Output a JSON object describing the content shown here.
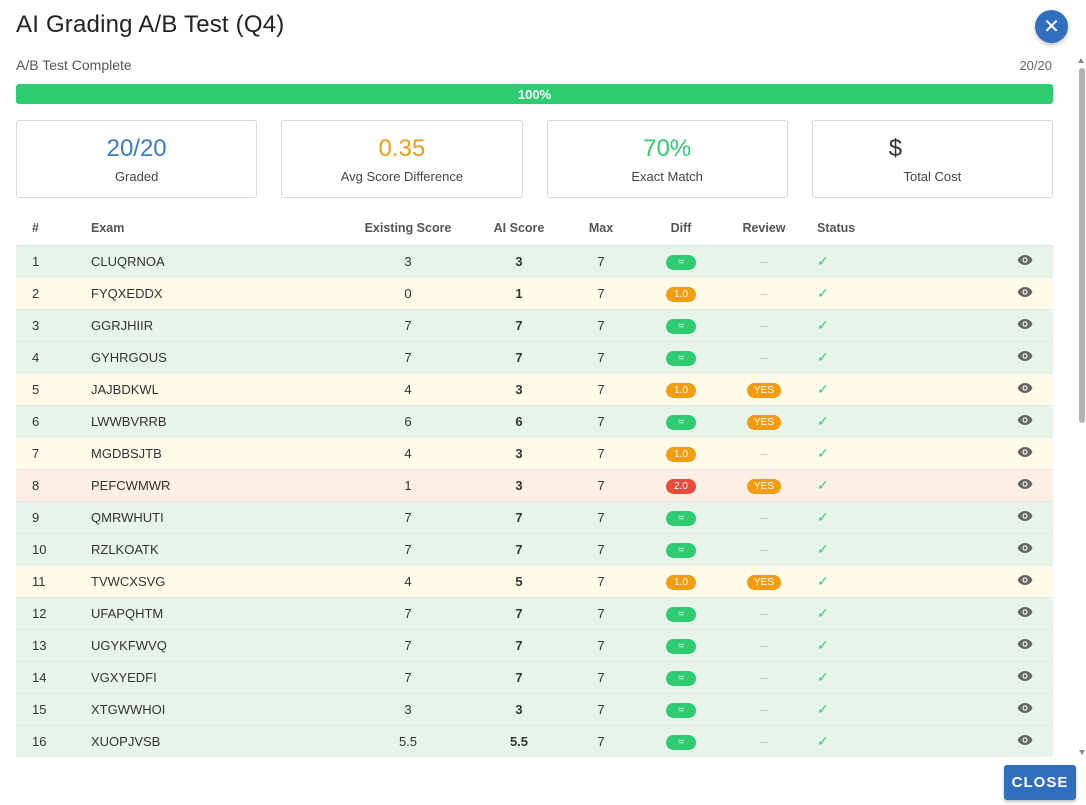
{
  "dialog": {
    "title": "AI Grading A/B Test (Q4)",
    "close_icon": "close-icon",
    "subtitle": "A/B Test Complete",
    "count": "20/20",
    "progress_value": 100,
    "progress_label": "100%",
    "close_button": "CLOSE"
  },
  "stats": [
    {
      "value": "20/20",
      "label": "Graded",
      "color": "#3a7cc2"
    },
    {
      "value": "0.35",
      "label": "Avg Score Difference",
      "color": "#f39c12"
    },
    {
      "value": "70%",
      "label": "Exact Match",
      "color": "#2ecc71"
    },
    {
      "value": "$",
      "label": "Total Cost",
      "color": "#333333"
    }
  ],
  "table": {
    "headers": [
      "#",
      "Exam",
      "Existing Score",
      "AI Score",
      "Max",
      "Diff",
      "Review",
      "Status"
    ],
    "rows": [
      {
        "num": "1",
        "exam": "CLUQRNOA",
        "existing": "3",
        "ai": "3",
        "max": "7",
        "diff": "=",
        "review": "–",
        "status": "✓",
        "tone": "green"
      },
      {
        "num": "2",
        "exam": "FYQXEDDX",
        "existing": "0",
        "ai": "1",
        "max": "7",
        "diff": "1.0",
        "review": "–",
        "status": "✓",
        "tone": "yellow"
      },
      {
        "num": "3",
        "exam": "GGRJHIIR",
        "existing": "7",
        "ai": "7",
        "max": "7",
        "diff": "=",
        "review": "–",
        "status": "✓",
        "tone": "green"
      },
      {
        "num": "4",
        "exam": "GYHRGOUS",
        "existing": "7",
        "ai": "7",
        "max": "7",
        "diff": "=",
        "review": "–",
        "status": "✓",
        "tone": "green"
      },
      {
        "num": "5",
        "exam": "JAJBDKWL",
        "existing": "4",
        "ai": "3",
        "max": "7",
        "diff": "1.0",
        "review": "YES",
        "status": "✓",
        "tone": "yellow"
      },
      {
        "num": "6",
        "exam": "LWWBVRRB",
        "existing": "6",
        "ai": "6",
        "max": "7",
        "diff": "=",
        "review": "YES",
        "status": "✓",
        "tone": "green"
      },
      {
        "num": "7",
        "exam": "MGDBSJTB",
        "existing": "4",
        "ai": "3",
        "max": "7",
        "diff": "1.0",
        "review": "–",
        "status": "✓",
        "tone": "yellow"
      },
      {
        "num": "8",
        "exam": "PEFCWMWR",
        "existing": "1",
        "ai": "3",
        "max": "7",
        "diff": "2.0",
        "review": "YES",
        "status": "✓",
        "tone": "orange"
      },
      {
        "num": "9",
        "exam": "QMRWHUTI",
        "existing": "7",
        "ai": "7",
        "max": "7",
        "diff": "=",
        "review": "–",
        "status": "✓",
        "tone": "green"
      },
      {
        "num": "10",
        "exam": "RZLKOATK",
        "existing": "7",
        "ai": "7",
        "max": "7",
        "diff": "=",
        "review": "–",
        "status": "✓",
        "tone": "green"
      },
      {
        "num": "11",
        "exam": "TVWCXSVG",
        "existing": "4",
        "ai": "5",
        "max": "7",
        "diff": "1.0",
        "review": "YES",
        "status": "✓",
        "tone": "yellow"
      },
      {
        "num": "12",
        "exam": "UFAPQHTM",
        "existing": "7",
        "ai": "7",
        "max": "7",
        "diff": "=",
        "review": "–",
        "status": "✓",
        "tone": "green"
      },
      {
        "num": "13",
        "exam": "UGYKFWVQ",
        "existing": "7",
        "ai": "7",
        "max": "7",
        "diff": "=",
        "review": "–",
        "status": "✓",
        "tone": "green"
      },
      {
        "num": "14",
        "exam": "VGXYEDFI",
        "existing": "7",
        "ai": "7",
        "max": "7",
        "diff": "=",
        "review": "–",
        "status": "✓",
        "tone": "green"
      },
      {
        "num": "15",
        "exam": "XTGWWHOI",
        "existing": "3",
        "ai": "3",
        "max": "7",
        "diff": "=",
        "review": "–",
        "status": "✓",
        "tone": "green"
      },
      {
        "num": "16",
        "exam": "XUOPJVSB",
        "existing": "5.5",
        "ai": "5.5",
        "max": "7",
        "diff": "=",
        "review": "–",
        "status": "✓",
        "tone": "green"
      }
    ],
    "view_icon": "eye-icon"
  }
}
